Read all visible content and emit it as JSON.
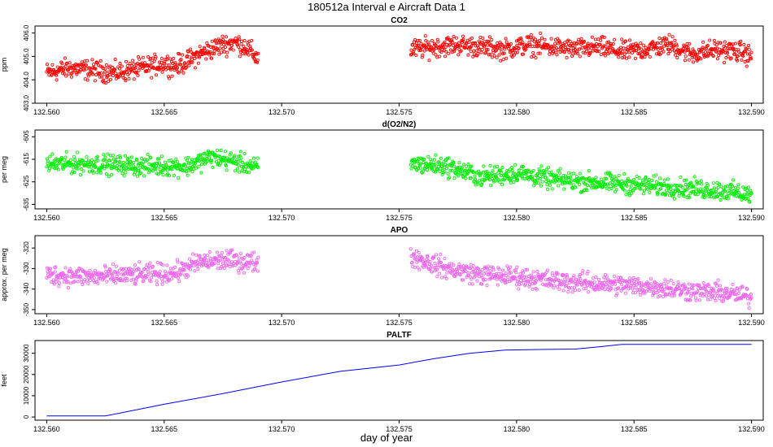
{
  "title": "180512a   Interval e Aircraft Data 1",
  "xlabel": "day of year",
  "chart_data": [
    {
      "type": "scatter",
      "title": "CO2",
      "ylabel": "ppm",
      "color": "#ff0000",
      "xlim": [
        132.5595,
        132.5905
      ],
      "ylim": [
        403.0,
        406.3
      ],
      "x_ticks": [
        "132.560",
        "132.565",
        "132.570",
        "132.575",
        "132.580",
        "132.585",
        "132.590"
      ],
      "y_ticks": [
        "403.0",
        "404.0",
        "405.0",
        "406.0"
      ],
      "y_tick_values": [
        403.0,
        404.0,
        405.0,
        406.0
      ],
      "segments": [
        {
          "x": [
            132.56,
            132.561,
            132.562,
            132.563,
            132.564,
            132.565,
            132.5655,
            132.566,
            132.5665,
            132.567,
            132.5675,
            132.568,
            132.5685,
            132.569
          ],
          "y": [
            404.3,
            404.5,
            404.4,
            404.3,
            404.5,
            404.7,
            404.6,
            404.8,
            405.1,
            405.3,
            405.5,
            405.6,
            405.4,
            404.9
          ]
        },
        {
          "x": [
            132.5755,
            132.5765,
            132.5775,
            132.5785,
            132.5795,
            132.5805,
            132.5815,
            132.5825,
            132.5835,
            132.5845,
            132.5855,
            132.5865,
            132.5875,
            132.5885,
            132.5895,
            132.59
          ],
          "y": [
            405.3,
            405.4,
            405.5,
            405.4,
            405.3,
            405.5,
            405.4,
            405.3,
            405.4,
            405.2,
            405.3,
            405.5,
            405.1,
            405.3,
            405.2,
            405.0
          ]
        }
      ],
      "noise": 0.35
    },
    {
      "type": "scatter",
      "title": "d(O2/N2)",
      "ylabel": "per meg",
      "color": "#00ee00",
      "xlim": [
        132.5595,
        132.5905
      ],
      "ylim": [
        -637,
        -602
      ],
      "x_ticks": [
        "132.560",
        "132.565",
        "132.570",
        "132.575",
        "132.580",
        "132.585",
        "132.590"
      ],
      "y_ticks": [
        "-605",
        "-615",
        "-625",
        "-635"
      ],
      "y_tick_values": [
        -605,
        -615,
        -625,
        -635
      ],
      "segments": [
        {
          "x": [
            132.56,
            132.562,
            132.564,
            132.566,
            132.567,
            132.568,
            132.569
          ],
          "y": [
            -617,
            -617,
            -618,
            -618,
            -614,
            -616,
            -619
          ]
        },
        {
          "x": [
            132.5755,
            132.577,
            132.5785,
            132.58,
            132.5815,
            132.583,
            132.5845,
            132.586,
            132.5875,
            132.589,
            132.59
          ],
          "y": [
            -617,
            -618,
            -623,
            -621,
            -624,
            -625,
            -626,
            -627,
            -628,
            -629,
            -631
          ]
        }
      ],
      "noise": 3.5
    },
    {
      "type": "scatter",
      "title": "APO",
      "ylabel": "approx. per meg",
      "color": "#ee66ee",
      "xlim": [
        132.5595,
        132.5905
      ],
      "ylim": [
        -352,
        -314
      ],
      "x_ticks": [
        "132.560",
        "132.565",
        "132.570",
        "132.575",
        "132.580",
        "132.585",
        "132.590"
      ],
      "y_ticks": [
        "-320",
        "-330",
        "-340",
        "-350"
      ],
      "y_tick_values": [
        -320,
        -330,
        -340,
        -350
      ],
      "segments": [
        {
          "x": [
            132.56,
            132.562,
            132.564,
            132.5655,
            132.5665,
            132.5675,
            132.569
          ],
          "y": [
            -333,
            -334,
            -333,
            -332,
            -327,
            -326,
            -327
          ]
        },
        {
          "x": [
            132.5755,
            132.577,
            132.5785,
            132.58,
            132.5815,
            132.583,
            132.5845,
            132.586,
            132.5875,
            132.589,
            132.59
          ],
          "y": [
            -324,
            -330,
            -333,
            -334,
            -336,
            -337,
            -338,
            -339,
            -341,
            -342,
            -344
          ]
        }
      ],
      "noise": 4
    },
    {
      "type": "line",
      "title": "PALTF",
      "ylabel": "feet",
      "color": "#0000ff",
      "xlim": [
        132.5595,
        132.5905
      ],
      "ylim": [
        -1500,
        36000
      ],
      "x_ticks": [
        "132.560",
        "132.565",
        "132.570",
        "132.575",
        "132.580",
        "132.585",
        "132.590"
      ],
      "y_ticks": [
        "0",
        "10000",
        "20000",
        "30000"
      ],
      "y_tick_values": [
        0,
        10000,
        20000,
        30000
      ],
      "x": [
        132.56,
        132.5625,
        132.565,
        132.5675,
        132.57,
        132.5725,
        132.575,
        132.5765,
        132.578,
        132.5795,
        132.581,
        132.5825,
        132.5835,
        132.5845,
        132.586,
        132.59
      ],
      "y": [
        500,
        500,
        6000,
        11000,
        16500,
        21500,
        24500,
        27500,
        30000,
        31500,
        31800,
        32000,
        33000,
        34200,
        34200,
        34200
      ]
    }
  ]
}
